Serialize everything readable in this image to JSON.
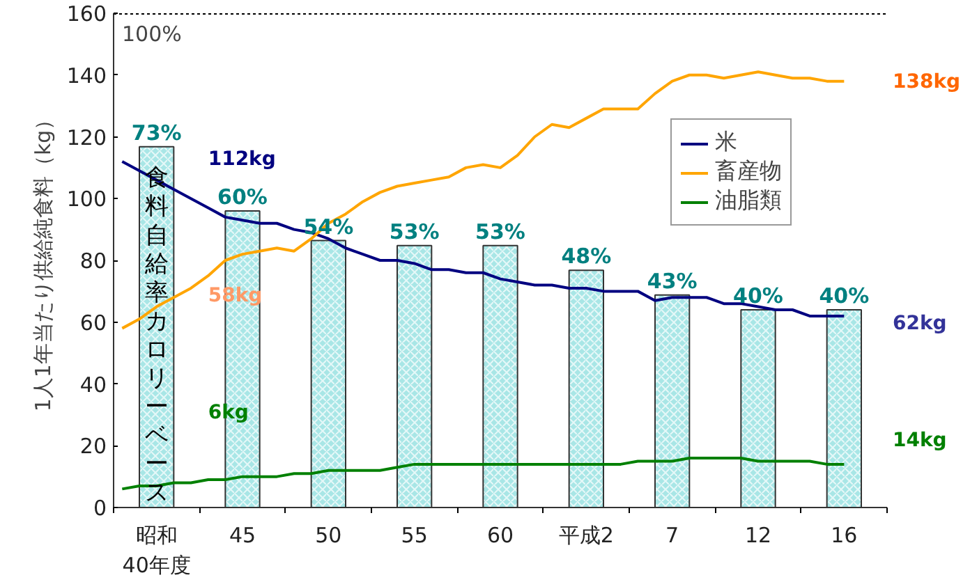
{
  "chart_data": {
    "type": "bar",
    "ylabel": "1人1年当たり供給純食料（kg）",
    "categories": [
      null,
      null,
      "昭和\n40年度",
      null,
      null,
      null,
      null,
      "45",
      null,
      null,
      null,
      null,
      "50",
      null,
      null,
      null,
      null,
      "55",
      null,
      null,
      null,
      null,
      "60",
      null,
      null,
      null,
      null,
      "平成2",
      null,
      null,
      null,
      null,
      "7",
      null,
      null,
      null,
      null,
      "12",
      null,
      null,
      null,
      null,
      "16",
      null,
      null
    ],
    "ylim": [
      0,
      160
    ],
    "yticks": [
      0,
      20,
      40,
      60,
      80,
      100,
      120,
      140,
      160
    ],
    "y2lim": [
      0,
      100
    ],
    "legend": "right",
    "grid": false,
    "series": [
      {
        "axis": "y2",
        "color": "#a8e6e6",
        "values": [
          null,
          null,
          73,
          null,
          null,
          null,
          null,
          60,
          null,
          null,
          null,
          null,
          54,
          null,
          null,
          null,
          null,
          53,
          null,
          null,
          null,
          null,
          53,
          null,
          null,
          null,
          null,
          48,
          null,
          null,
          null,
          null,
          43,
          null,
          null,
          null,
          null,
          40,
          null,
          null,
          null,
          null,
          40,
          null,
          null
        ],
        "value_labels": [
          null,
          null,
          "73%",
          null,
          null,
          null,
          null,
          "60%",
          null,
          null,
          null,
          null,
          "54%",
          null,
          null,
          null,
          null,
          "53%",
          null,
          null,
          null,
          null,
          "53%",
          null,
          null,
          null,
          null,
          "48%",
          null,
          null,
          null,
          null,
          "43%",
          null,
          null,
          null,
          null,
          "40%",
          null,
          null,
          null,
          null,
          "40%",
          null,
          null
        ]
      },
      {
        "type": "line",
        "name": "米",
        "color": "#000080",
        "values": [
          112,
          109,
          106,
          103,
          100,
          97,
          94,
          93,
          92,
          92,
          90,
          89,
          87,
          84,
          82,
          80,
          80,
          79,
          77,
          77,
          76,
          76,
          74,
          73,
          72,
          72,
          71,
          71,
          70,
          70,
          70,
          67,
          68,
          68,
          68,
          66,
          66,
          65,
          64,
          64,
          62,
          62,
          62,
          null,
          null
        ]
      },
      {
        "type": "line",
        "name": "畜産物",
        "color": "#ffa500",
        "values": [
          58,
          61,
          65,
          68,
          71,
          75,
          80,
          82,
          83,
          84,
          83,
          87,
          92,
          95,
          99,
          102,
          104,
          105,
          106,
          107,
          110,
          111,
          110,
          114,
          120,
          124,
          123,
          126,
          129,
          129,
          129,
          134,
          138,
          140,
          140,
          139,
          140,
          141,
          140,
          139,
          139,
          138,
          138,
          null,
          null
        ]
      },
      {
        "type": "line",
        "name": "油脂類",
        "color": "#008000",
        "values": [
          6,
          7,
          7,
          8,
          8,
          9,
          9,
          10,
          10,
          10,
          11,
          11,
          12,
          12,
          12,
          12,
          13,
          14,
          14,
          14,
          14,
          14,
          14,
          14,
          14,
          14,
          14,
          14,
          14,
          14,
          15,
          15,
          15,
          16,
          16,
          16,
          16,
          15,
          15,
          15,
          15,
          14,
          14,
          null,
          null
        ]
      }
    ],
    "ref_lines": [
      {
        "axis": "y2",
        "value": 100,
        "label": "100%",
        "line_style": "dotted",
        "color": "#000000"
      }
    ],
    "annotations": [
      "食料自給率カロリーベース",
      "112kg",
      "58kg",
      "6kg",
      "138kg",
      "62kg",
      "14kg"
    ]
  }
}
